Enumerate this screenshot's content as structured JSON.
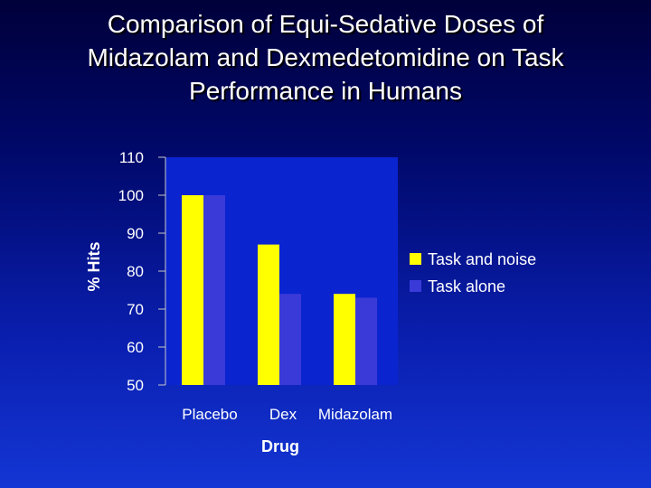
{
  "chart_data": {
    "type": "bar",
    "title_lines": [
      "Comparison of Equi-Sedative Doses of",
      "Midazolam and Dexmedetomidine on Task",
      "Performance in Humans"
    ],
    "xlabel": "Drug",
    "ylabel": "% Hits",
    "categories": [
      "Placebo",
      "Dex",
      "Midazolam"
    ],
    "series": [
      {
        "name": "Task and noise",
        "values": [
          100,
          87,
          74
        ],
        "color": "#ffff00"
      },
      {
        "name": "Task alone",
        "values": [
          100,
          74,
          73
        ],
        "color": "#3a3ad8"
      }
    ],
    "ylim": [
      50,
      110
    ],
    "yticks": [
      50,
      60,
      70,
      80,
      90,
      100,
      110
    ],
    "yticks_labels": [
      "50",
      "60",
      "70",
      "80",
      "90",
      "100",
      "110"
    ],
    "plot_bg": "#0a24d0",
    "legend_position": "right",
    "grid": false
  }
}
